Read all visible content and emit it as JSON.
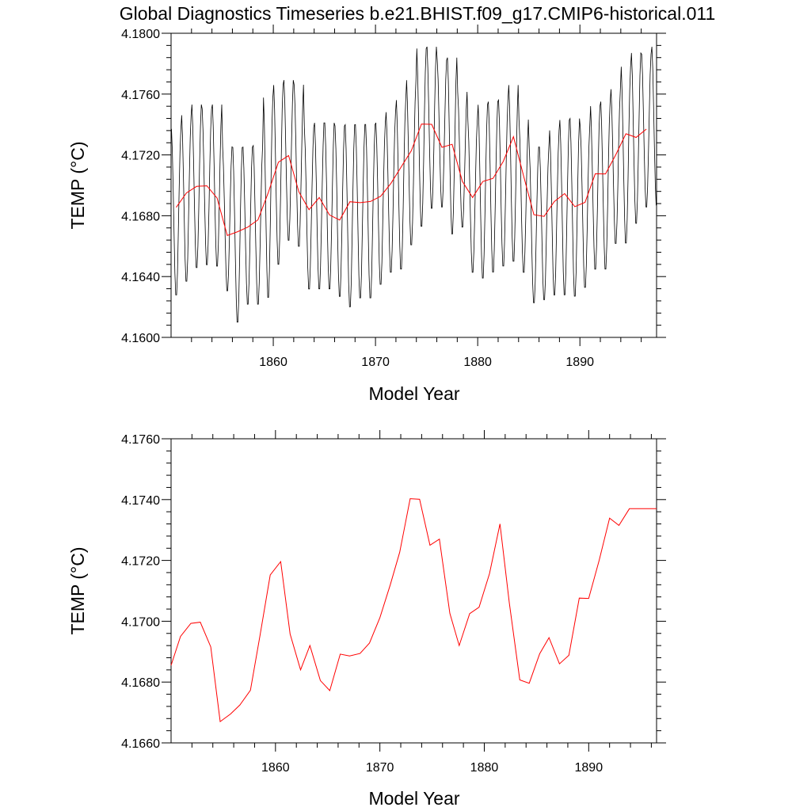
{
  "colors": {
    "monthly": "#000000",
    "annual": "#ff0000",
    "background": "#ffffff"
  },
  "chart_data": [
    {
      "type": "line",
      "title": "Global Diagnostics Timeseries b.e21.BHIST.f09_g17.CMIP6-historical.011",
      "xlabel": "Model Year",
      "ylabel": "TEMP (°C)",
      "xlim": [
        1850.0,
        1897.5
      ],
      "ylim": [
        4.16,
        4.18
      ],
      "xticks": [
        "1860",
        "1870",
        "1880",
        "1890"
      ],
      "yticks": [
        "4.1600",
        "4.1640",
        "4.1680",
        "4.1720",
        "4.1760",
        "4.1800"
      ],
      "grid": false,
      "legend": "none",
      "series": [
        {
          "style": "monthly-seasonal-cycle",
          "x": [
            1850.5,
            1851.5,
            1852.5,
            1853.5,
            1854.5,
            1855.5,
            1856.5,
            1857.5,
            1858.5,
            1859.5,
            1860.5,
            1861.5,
            1862.5,
            1863.5,
            1864.5,
            1865.5,
            1866.5,
            1867.5,
            1868.5,
            1869.5,
            1870.5,
            1871.5,
            1872.5,
            1873.5,
            1874.5,
            1875.5,
            1876.5,
            1877.5,
            1878.5,
            1879.5,
            1880.5,
            1881.5,
            1882.5,
            1883.5,
            1884.5,
            1885.5,
            1886.5,
            1887.5,
            1888.5,
            1889.5,
            1890.5,
            1891.5,
            1892.5,
            1893.5,
            1894.5,
            1895.5,
            1896.5,
            1897.5
          ],
          "max": [
            4.1739,
            4.1748,
            4.1755,
            4.1752,
            4.1755,
            4.1727,
            4.1727,
            4.1727,
            4.1728,
            4.176,
            4.1768,
            4.1771,
            4.1768,
            4.174,
            4.1743,
            4.1743,
            4.1741,
            4.1742,
            4.1742,
            4.1742,
            4.1743,
            4.175,
            4.1758,
            4.1771,
            4.1792,
            4.1793,
            4.1784,
            4.1786,
            4.1763,
            4.1744,
            4.1755,
            4.1757,
            4.1758,
            4.1768,
            4.1745,
            4.1727,
            4.1727,
            4.1738,
            4.1745,
            4.1746,
            4.174,
            4.1754,
            4.1757,
            4.1765,
            4.178,
            4.1789,
            4.1788,
            4.1793
          ],
          "min": [
            4.1626,
            4.1635,
            4.1644,
            4.1646,
            4.1645,
            4.1629,
            4.1608,
            4.162,
            4.162,
            4.1624,
            4.1646,
            4.1662,
            4.1658,
            4.163,
            4.163,
            4.163,
            4.1625,
            4.1618,
            4.1624,
            4.1624,
            4.1633,
            4.1641,
            4.1643,
            4.1659,
            4.1671,
            4.1683,
            4.1684,
            4.1666,
            4.1671,
            4.1641,
            4.1637,
            4.1641,
            4.1645,
            4.1648,
            4.1641,
            4.1621,
            4.1623,
            4.1626,
            4.1626,
            4.1625,
            4.1631,
            4.1643,
            4.1643,
            4.166,
            4.166,
            4.1673,
            4.1684,
            4.1685
          ]
        },
        {
          "style": "annual-mean",
          "x": [
            1850.5,
            1851.5,
            1852.5,
            1853.5,
            1854.5,
            1855.5,
            1856.5,
            1857.5,
            1858.5,
            1859.5,
            1860.5,
            1861.5,
            1862.5,
            1863.5,
            1864.5,
            1865.5,
            1866.5,
            1867.5,
            1868.5,
            1869.5,
            1870.5,
            1871.5,
            1872.5,
            1873.5,
            1874.5,
            1875.5,
            1876.5,
            1877.5,
            1878.5,
            1879.5,
            1880.5,
            1881.5,
            1882.5,
            1883.5,
            1884.5,
            1885.5,
            1886.5,
            1887.5,
            1888.5,
            1889.5,
            1890.5,
            1891.5,
            1892.5,
            1893.5,
            1894.5,
            1895.5,
            1896.5
          ],
          "values": [
            4.16855,
            4.1695,
            4.16993,
            4.16997,
            4.16916,
            4.1667,
            4.16695,
            4.16725,
            4.16773,
            4.1695,
            4.17152,
            4.17196,
            4.16958,
            4.1684,
            4.1692,
            4.16805,
            4.16772,
            4.16892,
            4.16886,
            4.16894,
            4.16928,
            4.17012,
            4.1712,
            4.17227,
            4.17403,
            4.17401,
            4.1725,
            4.1727,
            4.17026,
            4.1692,
            4.17025,
            4.17046,
            4.17157,
            4.1732,
            4.1706,
            4.16807,
            4.16796,
            4.16893,
            4.16946,
            4.1686,
            4.16888,
            4.17076,
            4.17075,
            4.172,
            4.17339,
            4.17315,
            4.1737
          ]
        }
      ]
    },
    {
      "type": "line",
      "title": "",
      "xlabel": "Model Year",
      "ylabel": "TEMP (°C)",
      "xlim": [
        1850.0,
        1896.5
      ],
      "ylim": [
        4.166,
        4.176
      ],
      "xticks": [
        "1860",
        "1870",
        "1880",
        "1890"
      ],
      "yticks": [
        "4.1660",
        "4.1680",
        "4.1700",
        "4.1720",
        "4.1740",
        "4.1760"
      ],
      "grid": false,
      "legend": "none",
      "series": [
        {
          "style": "annual-mean",
          "x": [
            1850.0,
            1850.9,
            1851.9,
            1852.8,
            1853.8,
            1854.7,
            1855.7,
            1856.6,
            1857.6,
            1858.5,
            1859.5,
            1860.5,
            1861.4,
            1862.4,
            1863.3,
            1864.3,
            1865.2,
            1866.2,
            1867.1,
            1868.1,
            1869.0,
            1870.0,
            1871.0,
            1871.9,
            1872.9,
            1873.8,
            1874.8,
            1875.7,
            1876.7,
            1877.6,
            1878.6,
            1879.5,
            1880.5,
            1881.5,
            1882.4,
            1883.4,
            1884.3,
            1885.3,
            1886.2,
            1887.2,
            1888.1,
            1889.1,
            1890.0,
            1891.0,
            1892.0,
            1892.9,
            1893.9,
            1894.8,
            1895.8,
            1896.5
          ],
          "values": [
            4.16855,
            4.1695,
            4.16993,
            4.16997,
            4.16916,
            4.1667,
            4.16695,
            4.16725,
            4.16773,
            4.1695,
            4.17152,
            4.17196,
            4.16958,
            4.1684,
            4.1692,
            4.16805,
            4.16772,
            4.16892,
            4.16886,
            4.16894,
            4.16928,
            4.17012,
            4.1712,
            4.17227,
            4.17403,
            4.17401,
            4.1725,
            4.1727,
            4.17026,
            4.1692,
            4.17025,
            4.17046,
            4.17157,
            4.1732,
            4.1706,
            4.16807,
            4.16796,
            4.16893,
            4.16946,
            4.1686,
            4.16888,
            4.17076,
            4.17075,
            4.172,
            4.17339,
            4.17315,
            4.1737,
            4.1737,
            4.1737,
            4.1737
          ]
        }
      ]
    }
  ]
}
